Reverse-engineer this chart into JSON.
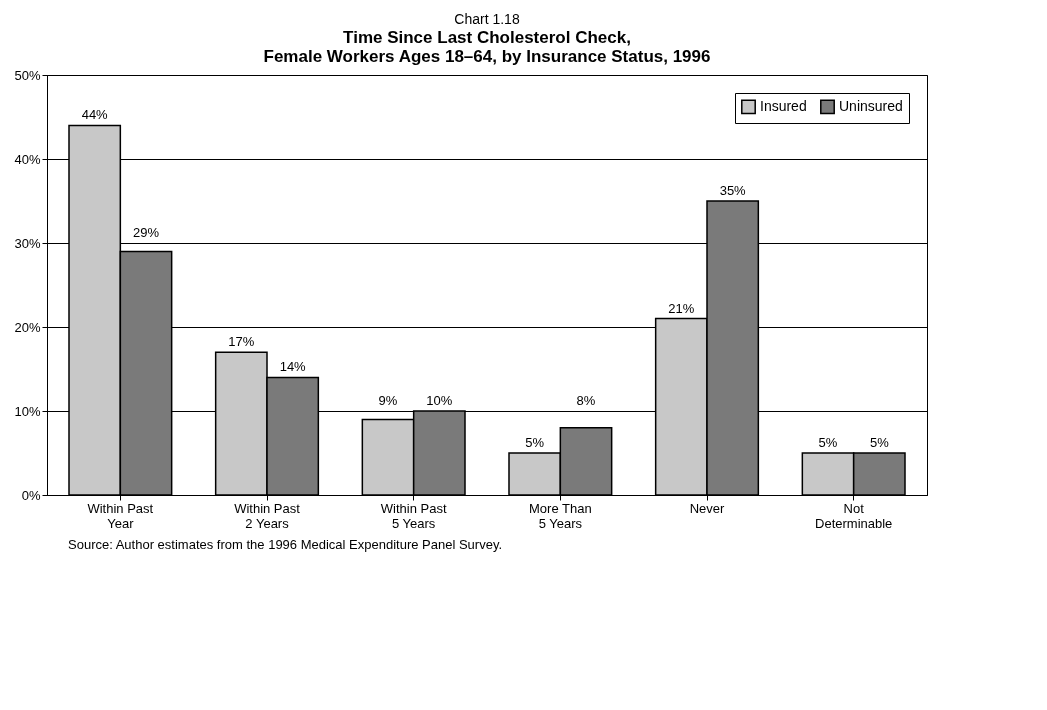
{
  "chart_data": {
    "type": "bar",
    "title": "Chart 1.18",
    "subtitle": "Time Since Last Cholesterol Check,\nFemale Workers Ages 18–64, by Insurance Status, 1996",
    "categories": [
      "Within Past\nYear",
      "Within Past\n2 Years",
      "Within Past\n5 Years",
      "More Than\n5 Years",
      "Never",
      "Not\nDeterminable"
    ],
    "series": [
      {
        "name": "Insured",
        "color": "#c8c8c8",
        "values": [
          44,
          17,
          9,
          5,
          21,
          5
        ],
        "value_labels": [
          "44%",
          "17%",
          "9%",
          "5%",
          "21%",
          "5%"
        ]
      },
      {
        "name": "Uninsured",
        "color": "#7a7a7a",
        "values": [
          29,
          14,
          10,
          8,
          35,
          5
        ],
        "value_labels": [
          "29%",
          "14%",
          "10%",
          "8%",
          "35%",
          "5%"
        ]
      }
    ],
    "ylim": [
      0,
      50
    ],
    "yticks": [
      {
        "value": 0,
        "label": "0%"
      },
      {
        "value": 10,
        "label": "10%"
      },
      {
        "value": 20,
        "label": "20%"
      },
      {
        "value": 30,
        "label": "30%"
      },
      {
        "value": 40,
        "label": "40%"
      },
      {
        "value": 50,
        "label": "50%"
      }
    ],
    "grid": "y",
    "legend": "top right",
    "annotations": [
      "Source: Author estimates from the 1996 Medical Expenditure Panel Survey."
    ]
  }
}
